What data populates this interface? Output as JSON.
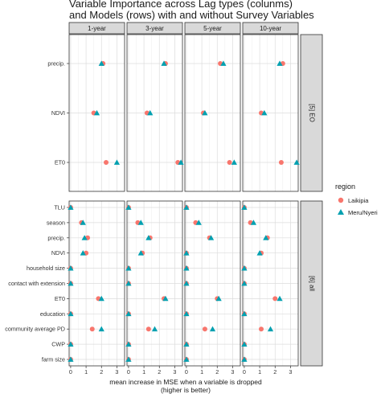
{
  "chart_data": {
    "type": "scatter",
    "title_lines": [
      "Variable Importance across Lag types (colunms)",
      "and Models (rows) with and without Survey Variables"
    ],
    "xlabel_lines": [
      "mean increase in MSE when a variable is dropped",
      "(higher is better)"
    ],
    "columns": [
      "1-year",
      "3-year",
      "5-year",
      "10-year"
    ],
    "x_ticks": [
      0,
      1,
      2,
      3
    ],
    "xlim": [
      -0.1,
      3.5
    ],
    "grid": true,
    "legend": {
      "title": "region",
      "position": "right",
      "entries": [
        {
          "label": "Laikipia",
          "shape": "circle",
          "color": "#F8766D"
        },
        {
          "label": "Meru/Nyeri",
          "shape": "triangle",
          "color": "#00A0B0"
        }
      ]
    },
    "rows": [
      {
        "label": "[5] EO",
        "variables": [
          "precip.",
          "NDVI",
          "ET0"
        ],
        "values": {
          "Laikipia": [
            [
              2.1,
              2.4,
              2.2,
              2.5
            ],
            [
              1.5,
              1.2,
              1.1,
              1.1
            ],
            [
              2.3,
              3.2,
              2.8,
              2.4
            ]
          ],
          "Meru/Nyeri": [
            [
              2.0,
              2.3,
              2.4,
              2.3
            ],
            [
              1.7,
              1.4,
              1.2,
              1.3
            ],
            [
              3.0,
              3.4,
              3.1,
              3.4
            ]
          ]
        }
      },
      {
        "label": "[6] all",
        "variables": [
          "TLU",
          "season",
          "precip.",
          "NDVI",
          "household size",
          "contact with extension",
          "ET0",
          "education",
          "community average PD",
          "CWP",
          "farm size"
        ],
        "values": {
          "Laikipia": [
            [
              0.0,
              0.0,
              0.0,
              0.0
            ],
            [
              0.7,
              0.6,
              0.6,
              0.4
            ],
            [
              1.1,
              1.4,
              1.5,
              1.5
            ],
            [
              1.0,
              0.9,
              0.0,
              1.1
            ],
            [
              0.0,
              0.0,
              0.0,
              0.0
            ],
            [
              0.0,
              0.0,
              0.0,
              0.0
            ],
            [
              1.8,
              2.3,
              2.0,
              2.0
            ],
            [
              0.0,
              0.0,
              0.0,
              0.0
            ],
            [
              1.4,
              1.3,
              1.2,
              1.1
            ],
            [
              0.0,
              0.0,
              0.0,
              0.0
            ],
            [
              0.0,
              0.0,
              0.0,
              0.0
            ]
          ],
          "Meru/Nyeri": [
            [
              0.0,
              0.0,
              0.0,
              0.0
            ],
            [
              0.8,
              0.8,
              0.8,
              0.6
            ],
            [
              0.9,
              1.3,
              1.6,
              1.4
            ],
            [
              0.8,
              0.8,
              0.0,
              1.0
            ],
            [
              0.0,
              0.0,
              0.0,
              0.0
            ],
            [
              0.0,
              0.0,
              0.0,
              0.0
            ],
            [
              2.0,
              2.4,
              2.1,
              2.3
            ],
            [
              0.0,
              0.0,
              0.0,
              0.0
            ],
            [
              2.0,
              1.7,
              1.7,
              1.7
            ],
            [
              0.0,
              0.0,
              0.0,
              0.0
            ],
            [
              0.0,
              0.0,
              0.0,
              0.0
            ]
          ]
        }
      }
    ]
  }
}
